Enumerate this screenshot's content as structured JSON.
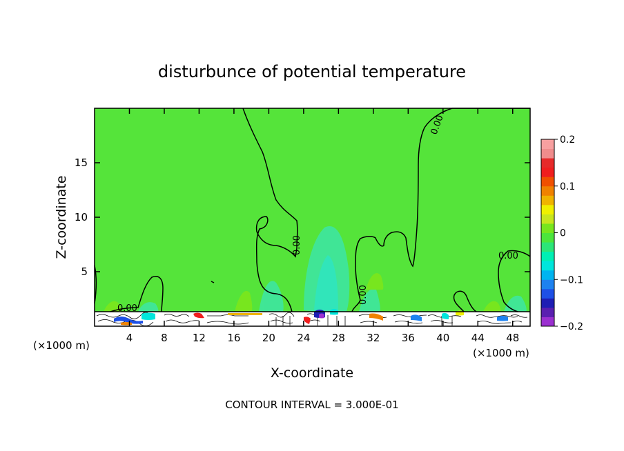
{
  "chart_data": {
    "type": "contour",
    "title": "disturbunce of potential temperature",
    "xlabel": "X-coordinate",
    "ylabel": "Z-coordinate",
    "x_unit": "(×1000 m)",
    "x_unit_right": "(×1000 m)",
    "xlim": [
      0,
      50
    ],
    "ylim": [
      0,
      20
    ],
    "x_ticks": [
      4,
      8,
      12,
      16,
      20,
      24,
      28,
      32,
      36,
      40,
      44,
      48
    ],
    "y_ticks": [
      5,
      10,
      15
    ],
    "contour_interval_text": "CONTOUR INTERVAL = 3.000E-01",
    "contour_labels": [
      "0.00",
      "0.00",
      "0.00",
      "0.00",
      "0.00"
    ],
    "colorbar": {
      "ticks": [
        0.2,
        0.1,
        0,
        -0.1,
        -0.2
      ],
      "tick_labels": [
        "0.2",
        "0.1",
        "0",
        "−0.1",
        "−0.2"
      ],
      "colors": [
        "#9b30d0",
        "#5a1fb0",
        "#1e1eb4",
        "#1e50e6",
        "#1e82f0",
        "#00b4f0",
        "#00e6dc",
        "#00f0b4",
        "#2ce678",
        "#4ce63c",
        "#78e61e",
        "#c8e61e",
        "#f0f000",
        "#f0b400",
        "#f08200",
        "#f05000",
        "#f01e1e",
        "#e62a2a",
        "#f08c8c",
        "#f8a0a0"
      ]
    },
    "background_color": "#55e43a"
  }
}
